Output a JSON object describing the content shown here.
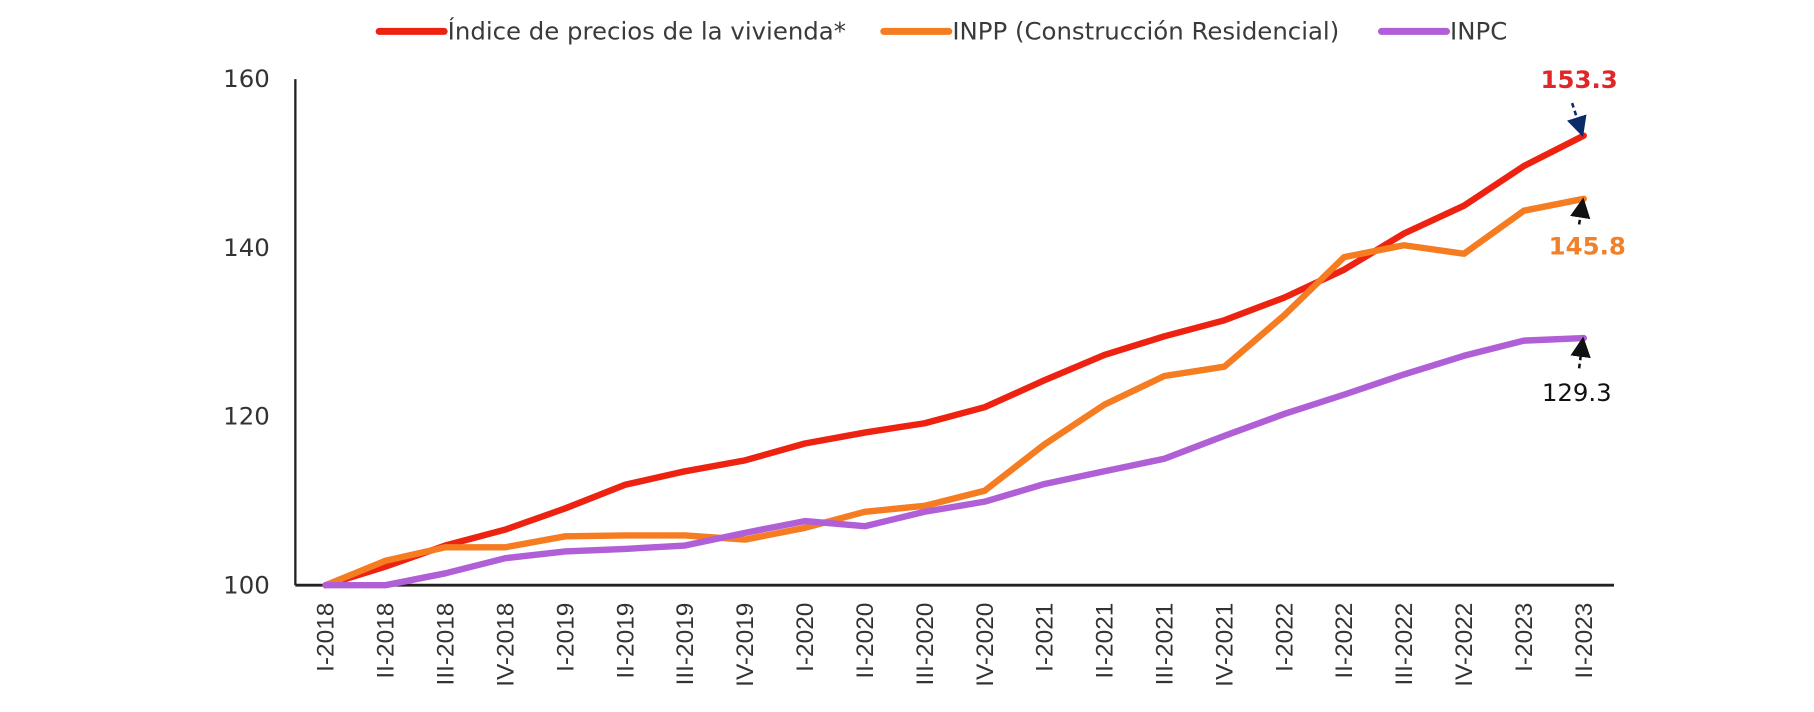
{
  "chart_data": {
    "type": "line",
    "title": "",
    "xlabel": "",
    "ylabel": "",
    "ylim": [
      100,
      160
    ],
    "yticks": [
      "100",
      "120",
      "140",
      "160"
    ],
    "grid": false,
    "legend_position": "top-center",
    "categories": [
      "I-2018",
      "II-2018",
      "III-2018",
      "IV-2018",
      "I-2019",
      "II-2019",
      "III-2019",
      "IV-2019",
      "I-2020",
      "II-2020",
      "III-2020",
      "IV-2020",
      "I-2021",
      "II-2021",
      "III-2021",
      "IV-2021",
      "I-2022",
      "II-2022",
      "III-2022",
      "IV-2022",
      "I-2023",
      "II-2023"
    ],
    "series": [
      {
        "name": "Índice de precios de la vivienda*",
        "color": "#ee2211",
        "values": [
          100.0,
          102.2,
          104.7,
          106.6,
          109.1,
          111.9,
          113.5,
          114.8,
          116.8,
          118.1,
          119.2,
          121.1,
          124.3,
          127.3,
          129.5,
          131.4,
          134.1,
          137.4,
          141.7,
          145.0,
          149.7,
          153.3
        ]
      },
      {
        "name": "INPP (Construcción Residencial)",
        "color": "#f57c20",
        "values": [
          100.0,
          102.9,
          104.5,
          104.5,
          105.8,
          105.9,
          105.9,
          105.4,
          106.8,
          108.7,
          109.4,
          111.2,
          116.7,
          121.4,
          124.8,
          125.9,
          132.0,
          138.9,
          140.3,
          139.3,
          144.4,
          145.8
        ]
      },
      {
        "name": "INPC",
        "color": "#b05fd6",
        "values": [
          100.0,
          100.0,
          101.4,
          103.2,
          104.0,
          104.3,
          104.7,
          106.2,
          107.6,
          107.0,
          108.7,
          109.9,
          112.0,
          113.5,
          115.0,
          117.7,
          120.3,
          122.6,
          125.0,
          127.2,
          129.0,
          129.3
        ]
      }
    ],
    "annotations": [
      {
        "series": "Índice de precios de la vivienda*",
        "label": "153.3",
        "color": "#e02626",
        "arrow_color": "#0b2a6b",
        "position": "above"
      },
      {
        "series": "INPP (Construcción Residencial)",
        "label": "145.8",
        "color": "#f0802a",
        "arrow_color": "#111111",
        "position": "below"
      },
      {
        "series": "INPC",
        "label": "129.3",
        "color": "#111111",
        "arrow_color": "#111111",
        "position": "below"
      }
    ]
  }
}
